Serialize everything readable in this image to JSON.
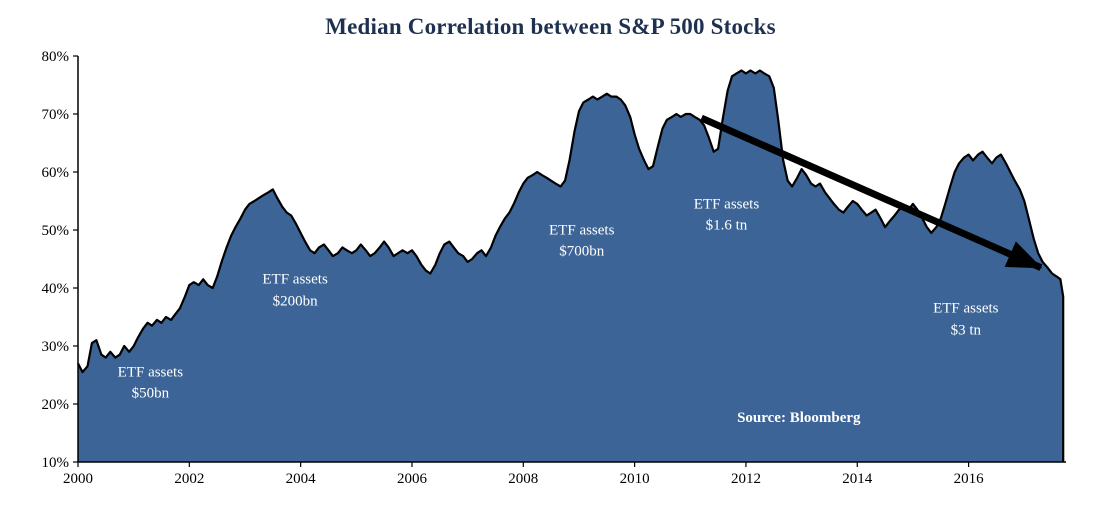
{
  "chart_data": {
    "type": "area",
    "title": "Median Correlation between S&P 500 Stocks",
    "xlabel": "",
    "ylabel": "",
    "legend": "none",
    "grid": false,
    "x_axis": {
      "range": [
        2000,
        2017.75
      ],
      "ticks": [
        {
          "value": 2000,
          "label": "2000"
        },
        {
          "value": 2002,
          "label": "2002"
        },
        {
          "value": 2004,
          "label": "2004"
        },
        {
          "value": 2006,
          "label": "2006"
        },
        {
          "value": 2008,
          "label": "2008"
        },
        {
          "value": 2010,
          "label": "2010"
        },
        {
          "value": 2012,
          "label": "2012"
        },
        {
          "value": 2014,
          "label": "2014"
        },
        {
          "value": 2016,
          "label": "2016"
        }
      ]
    },
    "y_axis": {
      "range": [
        10,
        80
      ],
      "ticks": [
        {
          "value": 10,
          "label": "10%"
        },
        {
          "value": 20,
          "label": "20%"
        },
        {
          "value": 30,
          "label": "30%"
        },
        {
          "value": 40,
          "label": "40%"
        },
        {
          "value": 50,
          "label": "50%"
        },
        {
          "value": 60,
          "label": "60%"
        },
        {
          "value": 70,
          "label": "70%"
        },
        {
          "value": 80,
          "label": "80%"
        }
      ]
    },
    "series": [
      {
        "name": "Median correlation between S&P 500 stocks (%)",
        "points": [
          [
            2000.0,
            27
          ],
          [
            2000.08,
            25.5
          ],
          [
            2000.17,
            26.5
          ],
          [
            2000.25,
            30.5
          ],
          [
            2000.33,
            31
          ],
          [
            2000.42,
            28.5
          ],
          [
            2000.5,
            28
          ],
          [
            2000.58,
            29
          ],
          [
            2000.67,
            28
          ],
          [
            2000.75,
            28.5
          ],
          [
            2000.83,
            30
          ],
          [
            2000.92,
            29
          ],
          [
            2001.0,
            30
          ],
          [
            2001.08,
            31.5
          ],
          [
            2001.17,
            33
          ],
          [
            2001.25,
            34
          ],
          [
            2001.33,
            33.5
          ],
          [
            2001.42,
            34.5
          ],
          [
            2001.5,
            34
          ],
          [
            2001.58,
            35
          ],
          [
            2001.67,
            34.5
          ],
          [
            2001.75,
            35.5
          ],
          [
            2001.83,
            36.5
          ],
          [
            2001.92,
            38.5
          ],
          [
            2002.0,
            40.5
          ],
          [
            2002.08,
            41
          ],
          [
            2002.17,
            40.5
          ],
          [
            2002.25,
            41.5
          ],
          [
            2002.33,
            40.5
          ],
          [
            2002.42,
            40
          ],
          [
            2002.5,
            42
          ],
          [
            2002.58,
            44.5
          ],
          [
            2002.67,
            47
          ],
          [
            2002.75,
            49
          ],
          [
            2002.83,
            50.5
          ],
          [
            2002.92,
            52
          ],
          [
            2003.0,
            53.5
          ],
          [
            2003.08,
            54.5
          ],
          [
            2003.17,
            55
          ],
          [
            2003.25,
            55.5
          ],
          [
            2003.33,
            56
          ],
          [
            2003.42,
            56.5
          ],
          [
            2003.5,
            57
          ],
          [
            2003.58,
            55.5
          ],
          [
            2003.67,
            54
          ],
          [
            2003.75,
            53
          ],
          [
            2003.83,
            52.5
          ],
          [
            2003.92,
            51
          ],
          [
            2004.0,
            49.5
          ],
          [
            2004.08,
            48
          ],
          [
            2004.17,
            46.5
          ],
          [
            2004.25,
            46
          ],
          [
            2004.33,
            47
          ],
          [
            2004.42,
            47.5
          ],
          [
            2004.5,
            46.5
          ],
          [
            2004.58,
            45.5
          ],
          [
            2004.67,
            46
          ],
          [
            2004.75,
            47
          ],
          [
            2004.83,
            46.5
          ],
          [
            2004.92,
            46
          ],
          [
            2005.0,
            46.5
          ],
          [
            2005.08,
            47.5
          ],
          [
            2005.17,
            46.5
          ],
          [
            2005.25,
            45.5
          ],
          [
            2005.33,
            46
          ],
          [
            2005.42,
            47
          ],
          [
            2005.5,
            48
          ],
          [
            2005.58,
            47
          ],
          [
            2005.67,
            45.5
          ],
          [
            2005.75,
            46
          ],
          [
            2005.83,
            46.5
          ],
          [
            2005.92,
            46
          ],
          [
            2006.0,
            46.5
          ],
          [
            2006.08,
            45.5
          ],
          [
            2006.17,
            44
          ],
          [
            2006.25,
            43
          ],
          [
            2006.33,
            42.5
          ],
          [
            2006.42,
            44
          ],
          [
            2006.5,
            46
          ],
          [
            2006.58,
            47.5
          ],
          [
            2006.67,
            48
          ],
          [
            2006.75,
            47
          ],
          [
            2006.83,
            46
          ],
          [
            2006.92,
            45.5
          ],
          [
            2007.0,
            44.5
          ],
          [
            2007.08,
            45
          ],
          [
            2007.17,
            46
          ],
          [
            2007.25,
            46.5
          ],
          [
            2007.33,
            45.5
          ],
          [
            2007.42,
            47
          ],
          [
            2007.5,
            49
          ],
          [
            2007.58,
            50.5
          ],
          [
            2007.67,
            52
          ],
          [
            2007.75,
            53
          ],
          [
            2007.83,
            54.5
          ],
          [
            2007.92,
            56.5
          ],
          [
            2008.0,
            58
          ],
          [
            2008.08,
            59
          ],
          [
            2008.17,
            59.5
          ],
          [
            2008.25,
            60
          ],
          [
            2008.33,
            59.5
          ],
          [
            2008.42,
            59
          ],
          [
            2008.5,
            58.5
          ],
          [
            2008.58,
            58
          ],
          [
            2008.67,
            57.5
          ],
          [
            2008.75,
            58.5
          ],
          [
            2008.83,
            62
          ],
          [
            2008.92,
            67
          ],
          [
            2009.0,
            70.5
          ],
          [
            2009.08,
            72
          ],
          [
            2009.17,
            72.5
          ],
          [
            2009.25,
            73
          ],
          [
            2009.33,
            72.5
          ],
          [
            2009.42,
            73
          ],
          [
            2009.5,
            73.5
          ],
          [
            2009.58,
            73
          ],
          [
            2009.67,
            73
          ],
          [
            2009.75,
            72.5
          ],
          [
            2009.83,
            71.5
          ],
          [
            2009.92,
            69.5
          ],
          [
            2010.0,
            66.5
          ],
          [
            2010.08,
            64
          ],
          [
            2010.17,
            62
          ],
          [
            2010.25,
            60.5
          ],
          [
            2010.33,
            61
          ],
          [
            2010.42,
            64.5
          ],
          [
            2010.5,
            67.5
          ],
          [
            2010.58,
            69
          ],
          [
            2010.67,
            69.5
          ],
          [
            2010.75,
            70
          ],
          [
            2010.83,
            69.5
          ],
          [
            2010.92,
            70
          ],
          [
            2011.0,
            70
          ],
          [
            2011.08,
            69.5
          ],
          [
            2011.17,
            69
          ],
          [
            2011.25,
            68
          ],
          [
            2011.33,
            66
          ],
          [
            2011.42,
            63.5
          ],
          [
            2011.5,
            64
          ],
          [
            2011.58,
            69
          ],
          [
            2011.67,
            74
          ],
          [
            2011.75,
            76.5
          ],
          [
            2011.83,
            77
          ],
          [
            2011.92,
            77.5
          ],
          [
            2012.0,
            77
          ],
          [
            2012.08,
            77.5
          ],
          [
            2012.17,
            77
          ],
          [
            2012.25,
            77.5
          ],
          [
            2012.33,
            77
          ],
          [
            2012.42,
            76.5
          ],
          [
            2012.5,
            74.5
          ],
          [
            2012.58,
            69
          ],
          [
            2012.67,
            62
          ],
          [
            2012.75,
            58.5
          ],
          [
            2012.83,
            57.5
          ],
          [
            2012.92,
            59
          ],
          [
            2013.0,
            60.5
          ],
          [
            2013.08,
            59.5
          ],
          [
            2013.17,
            58
          ],
          [
            2013.25,
            57.5
          ],
          [
            2013.33,
            58
          ],
          [
            2013.42,
            56.5
          ],
          [
            2013.5,
            55.5
          ],
          [
            2013.58,
            54.5
          ],
          [
            2013.67,
            53.5
          ],
          [
            2013.75,
            53
          ],
          [
            2013.83,
            54
          ],
          [
            2013.92,
            55
          ],
          [
            2014.0,
            54.5
          ],
          [
            2014.08,
            53.5
          ],
          [
            2014.17,
            52.5
          ],
          [
            2014.25,
            53
          ],
          [
            2014.33,
            53.5
          ],
          [
            2014.42,
            52
          ],
          [
            2014.5,
            50.5
          ],
          [
            2014.58,
            51.5
          ],
          [
            2014.67,
            52.5
          ],
          [
            2014.75,
            53.5
          ],
          [
            2014.83,
            54
          ],
          [
            2014.92,
            53.5
          ],
          [
            2015.0,
            54.5
          ],
          [
            2015.08,
            53.5
          ],
          [
            2015.17,
            52
          ],
          [
            2015.25,
            50.5
          ],
          [
            2015.33,
            49.5
          ],
          [
            2015.42,
            50.5
          ],
          [
            2015.5,
            52
          ],
          [
            2015.58,
            54.5
          ],
          [
            2015.67,
            57.5
          ],
          [
            2015.75,
            60
          ],
          [
            2015.83,
            61.5
          ],
          [
            2015.92,
            62.5
          ],
          [
            2016.0,
            63
          ],
          [
            2016.08,
            62
          ],
          [
            2016.17,
            63
          ],
          [
            2016.25,
            63.5
          ],
          [
            2016.33,
            62.5
          ],
          [
            2016.42,
            61.5
          ],
          [
            2016.5,
            62.5
          ],
          [
            2016.58,
            63
          ],
          [
            2016.67,
            61.5
          ],
          [
            2016.75,
            60
          ],
          [
            2016.83,
            58.5
          ],
          [
            2016.92,
            57
          ],
          [
            2017.0,
            55
          ],
          [
            2017.08,
            52
          ],
          [
            2017.17,
            48.5
          ],
          [
            2017.25,
            46
          ],
          [
            2017.33,
            44.5
          ],
          [
            2017.42,
            43.5
          ],
          [
            2017.5,
            42.5
          ],
          [
            2017.58,
            42
          ],
          [
            2017.65,
            41.5
          ],
          [
            2017.7,
            38.5
          ]
        ]
      }
    ],
    "annotations": [
      {
        "name": "etf-annotation-50bn",
        "lines": [
          "ETF assets",
          "$50bn"
        ],
        "x": 2001.3,
        "y": 23.5
      },
      {
        "name": "etf-annotation-200bn",
        "lines": [
          "ETF assets",
          "$200bn"
        ],
        "x": 2003.9,
        "y": 39.5
      },
      {
        "name": "etf-annotation-700bn",
        "lines": [
          "ETF assets",
          "$700bn"
        ],
        "x": 2009.05,
        "y": 48
      },
      {
        "name": "etf-annotation-1-6tn",
        "lines": [
          "ETF assets",
          "$1.6 tn"
        ],
        "x": 2011.65,
        "y": 52.5
      },
      {
        "name": "etf-annotation-3tn",
        "lines": [
          "ETF assets",
          "$3 tn"
        ],
        "x": 2015.95,
        "y": 34.5
      },
      {
        "name": "source-label",
        "lines": [
          "Source: Bloomberg"
        ],
        "x": 2012.95,
        "y": 17.5,
        "bold": true
      }
    ],
    "arrow": {
      "from": [
        2011.2,
        69.3
      ],
      "to": [
        2017.3,
        43.5
      ]
    },
    "colors": {
      "area_fill": "#3C6496",
      "area_outline": "#000000",
      "title_text": "#1F3150",
      "axis_text": "#000000",
      "annotation_text": "#FFFFFF",
      "arrow": "#000000",
      "background": "#FFFFFF"
    }
  }
}
